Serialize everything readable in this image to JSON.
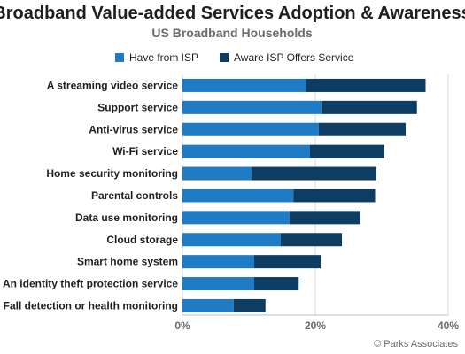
{
  "chart_data": {
    "type": "bar",
    "orientation": "horizontal",
    "stacked": true,
    "title": "Broadband Value-added Services Adoption & Awareness",
    "subtitle": "US Broadband Households",
    "categories": [
      "A streaming video service",
      "Support service",
      "Anti-virus service",
      "Wi-Fi service",
      "Home security monitoring",
      "Parental controls",
      "Data use monitoring",
      "Cloud storage",
      "Smart home system",
      "An identity theft protection service",
      "Fall detection or health monitoring"
    ],
    "series": [
      {
        "name": "Have from ISP",
        "color": "#1f7bc4",
        "values": [
          18.6,
          20.9,
          20.5,
          19.2,
          10.4,
          16.7,
          16.1,
          14.8,
          10.8,
          10.8,
          7.7
        ]
      },
      {
        "name": "Aware ISP Offers Service",
        "color": "#0d3d63",
        "values": [
          18.0,
          14.4,
          13.1,
          11.2,
          18.8,
          12.3,
          10.7,
          9.2,
          10.0,
          6.7,
          4.8
        ]
      }
    ],
    "xlim": [
      0,
      40
    ],
    "xticks": [
      "0%",
      "20%",
      "40%"
    ],
    "xtick_values": [
      0,
      20,
      40
    ],
    "legend_position": "top",
    "grid": true
  },
  "source": "© Parks Associates"
}
